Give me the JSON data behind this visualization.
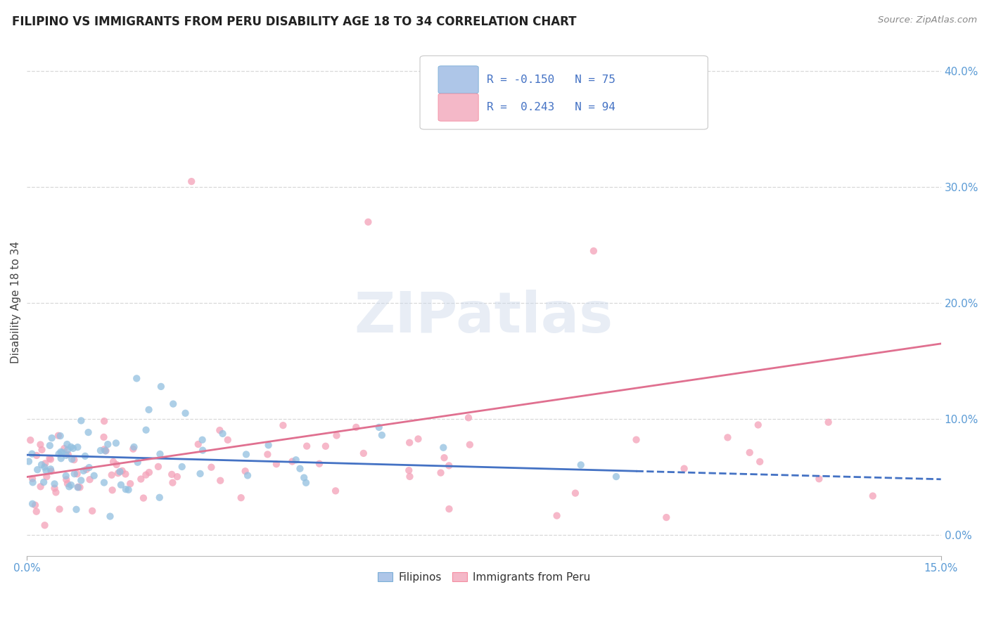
{
  "title": "FILIPINO VS IMMIGRANTS FROM PERU DISABILITY AGE 18 TO 34 CORRELATION CHART",
  "source": "Source: ZipAtlas.com",
  "ylabel": "Disability Age 18 to 34",
  "xlim": [
    0.0,
    0.15
  ],
  "ylim": [
    -0.018,
    0.42
  ],
  "yticks": [
    0.0,
    0.1,
    0.2,
    0.3,
    0.4
  ],
  "watermark": "ZIPatlas",
  "filipino_color": "#92c0e0",
  "peru_color": "#f4a0b8",
  "filipino_line_color": "#4472c4",
  "peru_line_color": "#e07090",
  "background_color": "#ffffff",
  "grid_color": "#d8d8d8",
  "title_fontsize": 12,
  "axis_label_color": "#5b9bd5",
  "title_color": "#222222",
  "source_color": "#888888",
  "legend_r1": "R = -0.150",
  "legend_n1": "N = 75",
  "legend_r2": "R =  0.243",
  "legend_n2": "N = 94",
  "legend_text_color": "#4472c4",
  "bottom_legend_labels": [
    "Filipinos",
    "Immigrants from Peru"
  ]
}
